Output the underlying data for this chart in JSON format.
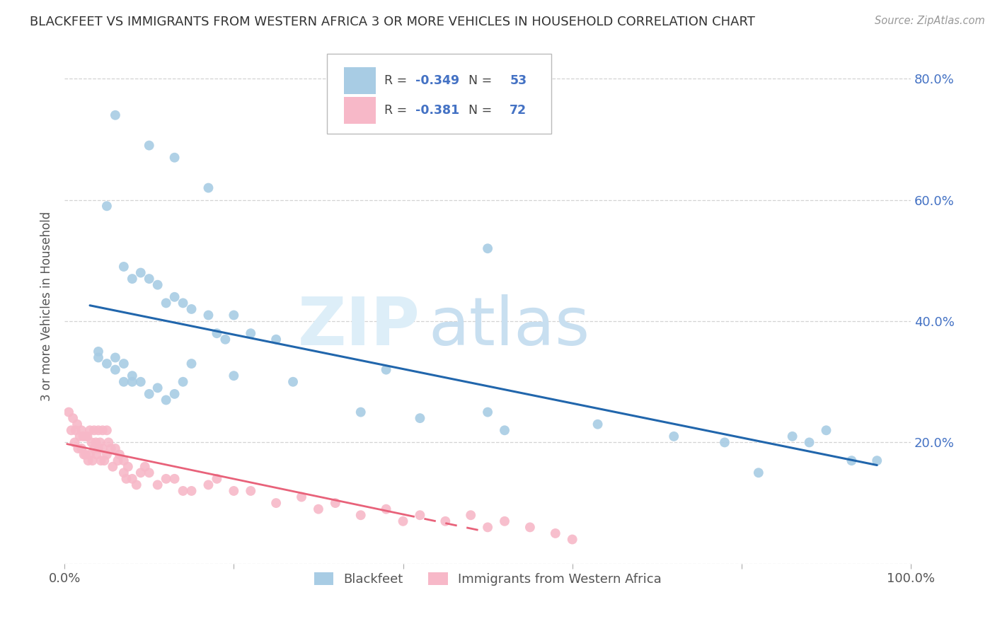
{
  "title": "BLACKFEET VS IMMIGRANTS FROM WESTERN AFRICA 3 OR MORE VEHICLES IN HOUSEHOLD CORRELATION CHART",
  "source": "Source: ZipAtlas.com",
  "ylabel": "3 or more Vehicles in Household",
  "legend_labels": [
    "Blackfeet",
    "Immigrants from Western Africa"
  ],
  "R_blackfeet": -0.349,
  "N_blackfeet": 53,
  "R_immigrants": -0.381,
  "N_immigrants": 72,
  "blue_color": "#a8cce4",
  "pink_color": "#f7b8c8",
  "line_blue": "#2166ac",
  "line_pink": "#e8627a",
  "watermark_zip": "ZIP",
  "watermark_atlas": "atlas",
  "blackfeet_x": [
    0.06,
    0.1,
    0.13,
    0.17,
    0.05,
    0.07,
    0.08,
    0.09,
    0.1,
    0.11,
    0.12,
    0.13,
    0.14,
    0.15,
    0.17,
    0.18,
    0.19,
    0.2,
    0.22,
    0.25,
    0.04,
    0.04,
    0.05,
    0.06,
    0.06,
    0.07,
    0.07,
    0.08,
    0.08,
    0.09,
    0.1,
    0.11,
    0.12,
    0.13,
    0.14,
    0.2,
    0.35,
    0.42,
    0.5,
    0.52,
    0.63,
    0.72,
    0.78,
    0.82,
    0.86,
    0.88,
    0.9,
    0.93,
    0.96,
    0.5,
    0.38,
    0.27,
    0.15
  ],
  "blackfeet_y": [
    0.74,
    0.69,
    0.67,
    0.62,
    0.59,
    0.49,
    0.47,
    0.48,
    0.47,
    0.46,
    0.43,
    0.44,
    0.43,
    0.42,
    0.41,
    0.38,
    0.37,
    0.41,
    0.38,
    0.37,
    0.35,
    0.34,
    0.33,
    0.34,
    0.32,
    0.33,
    0.3,
    0.31,
    0.3,
    0.3,
    0.28,
    0.29,
    0.27,
    0.28,
    0.3,
    0.31,
    0.25,
    0.24,
    0.25,
    0.22,
    0.23,
    0.21,
    0.2,
    0.15,
    0.21,
    0.2,
    0.22,
    0.17,
    0.17,
    0.52,
    0.32,
    0.3,
    0.33
  ],
  "immigrants_x": [
    0.005,
    0.008,
    0.01,
    0.012,
    0.013,
    0.015,
    0.016,
    0.018,
    0.02,
    0.02,
    0.022,
    0.023,
    0.025,
    0.025,
    0.027,
    0.028,
    0.03,
    0.03,
    0.032,
    0.033,
    0.035,
    0.035,
    0.037,
    0.038,
    0.04,
    0.04,
    0.042,
    0.043,
    0.045,
    0.045,
    0.047,
    0.05,
    0.05,
    0.052,
    0.055,
    0.057,
    0.06,
    0.063,
    0.065,
    0.07,
    0.07,
    0.073,
    0.075,
    0.08,
    0.085,
    0.09,
    0.095,
    0.1,
    0.11,
    0.12,
    0.13,
    0.14,
    0.15,
    0.17,
    0.18,
    0.2,
    0.22,
    0.25,
    0.28,
    0.3,
    0.32,
    0.35,
    0.38,
    0.4,
    0.42,
    0.45,
    0.48,
    0.5,
    0.52,
    0.55,
    0.58,
    0.6
  ],
  "immigrants_y": [
    0.25,
    0.22,
    0.24,
    0.2,
    0.22,
    0.23,
    0.19,
    0.21,
    0.22,
    0.19,
    0.21,
    0.18,
    0.21,
    0.18,
    0.21,
    0.17,
    0.22,
    0.18,
    0.2,
    0.17,
    0.22,
    0.19,
    0.2,
    0.18,
    0.22,
    0.19,
    0.2,
    0.17,
    0.22,
    0.19,
    0.17,
    0.22,
    0.18,
    0.2,
    0.19,
    0.16,
    0.19,
    0.17,
    0.18,
    0.15,
    0.17,
    0.14,
    0.16,
    0.14,
    0.13,
    0.15,
    0.16,
    0.15,
    0.13,
    0.14,
    0.14,
    0.12,
    0.12,
    0.13,
    0.14,
    0.12,
    0.12,
    0.1,
    0.11,
    0.09,
    0.1,
    0.08,
    0.09,
    0.07,
    0.08,
    0.07,
    0.08,
    0.06,
    0.07,
    0.06,
    0.05,
    0.04
  ],
  "xlim": [
    0.0,
    1.0
  ],
  "ylim": [
    0.0,
    0.85
  ],
  "ytick_vals": [
    0.0,
    0.2,
    0.4,
    0.6,
    0.8
  ],
  "ytick_labels_right": [
    "",
    "20.0%",
    "40.0%",
    "60.0%",
    "80.0%"
  ],
  "xtick_vals": [
    0.0,
    0.2,
    0.4,
    0.6,
    0.8,
    1.0
  ],
  "xtick_labels": [
    "0.0%",
    "",
    "",
    "",
    "",
    "100.0%"
  ],
  "background_color": "#ffffff",
  "grid_color": "#c8c8c8",
  "title_fontsize": 13,
  "axis_label_fontsize": 12,
  "tick_fontsize": 13
}
